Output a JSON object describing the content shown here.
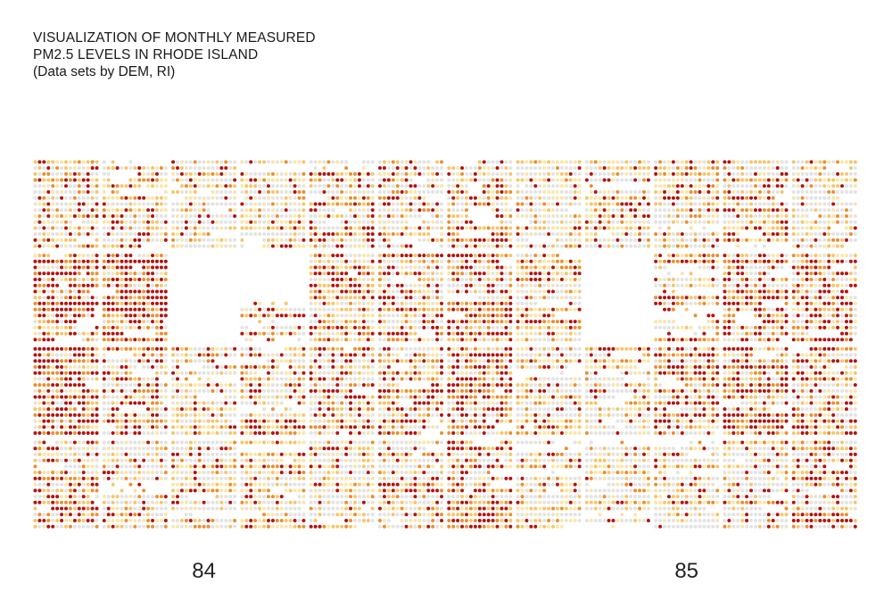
{
  "header": {
    "title_line1": "VISUALIZATION OF MONTHLY MEASURED",
    "title_line2": "PM2.5 LEVELS IN RHODE ISLAND",
    "subtitle": "(Data sets by DEM, RI)"
  },
  "chart_data": {
    "type": "heatmap",
    "title": "VISUALIZATION OF MONTHLY MEASURED PM2.5 LEVELS IN RHODE ISLAND",
    "subtitle": "(Data sets by DEM, RI)",
    "columns": [
      "84",
      "85"
    ],
    "labeled_column_indices": [
      2,
      9
    ],
    "grid": {
      "rows_of_panels": 4,
      "panels_per_row": 12,
      "dots_per_panel_row": 15,
      "dot_rows_per_panel": 15
    },
    "levels": [
      "no data",
      "low",
      "moderate",
      "elevated",
      "high",
      "very high"
    ],
    "colors": {
      "no data": "#ffffff",
      "low": "#e3e3e3",
      "moderate": "#fbe6a6",
      "elevated": "#f6c56a",
      "high": "#ea8f2e",
      "very high": "#b4120f"
    },
    "panels": [
      {
        "row": 0,
        "col": 0,
        "intensity": 0.35,
        "coverage": 0.95
      },
      {
        "row": 0,
        "col": 1,
        "intensity": 0.3,
        "coverage": 0.8
      },
      {
        "row": 0,
        "col": 2,
        "intensity": 0.1,
        "coverage": 0.95
      },
      {
        "row": 0,
        "col": 3,
        "intensity": 0.15,
        "coverage": 0.9
      },
      {
        "row": 0,
        "col": 4,
        "intensity": 0.35,
        "coverage": 0.9
      },
      {
        "row": 0,
        "col": 5,
        "intensity": 0.3,
        "coverage": 0.95
      },
      {
        "row": 0,
        "col": 6,
        "intensity": 0.45,
        "coverage": 0.95
      },
      {
        "row": 0,
        "col": 7,
        "intensity": 0.1,
        "coverage": 0.85
      },
      {
        "row": 0,
        "col": 8,
        "intensity": 0.2,
        "coverage": 0.85
      },
      {
        "row": 0,
        "col": 9,
        "intensity": 0.25,
        "coverage": 0.9
      },
      {
        "row": 0,
        "col": 10,
        "intensity": 0.35,
        "coverage": 0.85
      },
      {
        "row": 0,
        "col": 11,
        "intensity": 0.1,
        "coverage": 0.95
      },
      {
        "row": 1,
        "col": 0,
        "intensity": 0.85,
        "coverage": 1.0
      },
      {
        "row": 1,
        "col": 1,
        "intensity": 0.7,
        "coverage": 1.0
      },
      {
        "row": 1,
        "col": 2,
        "intensity": 0.0,
        "coverage": 0.0
      },
      {
        "row": 1,
        "col": 3,
        "intensity": 0.4,
        "coverage": 0.45,
        "top_empty": 0.55
      },
      {
        "row": 1,
        "col": 4,
        "intensity": 0.45,
        "coverage": 0.95
      },
      {
        "row": 1,
        "col": 5,
        "intensity": 0.55,
        "coverage": 0.95
      },
      {
        "row": 1,
        "col": 6,
        "intensity": 0.6,
        "coverage": 0.95
      },
      {
        "row": 1,
        "col": 7,
        "intensity": 0.3,
        "coverage": 0.9
      },
      {
        "row": 1,
        "col": 8,
        "intensity": 0.0,
        "coverage": 0.0
      },
      {
        "row": 1,
        "col": 9,
        "intensity": 0.5,
        "coverage": 0.3
      },
      {
        "row": 1,
        "col": 10,
        "intensity": 0.6,
        "coverage": 0.95
      },
      {
        "row": 1,
        "col": 11,
        "intensity": 0.7,
        "coverage": 1.0
      },
      {
        "row": 2,
        "col": 0,
        "intensity": 0.75,
        "coverage": 1.0
      },
      {
        "row": 2,
        "col": 1,
        "intensity": 0.55,
        "coverage": 0.95
      },
      {
        "row": 2,
        "col": 2,
        "intensity": 0.2,
        "coverage": 0.85
      },
      {
        "row": 2,
        "col": 3,
        "intensity": 0.4,
        "coverage": 0.9
      },
      {
        "row": 2,
        "col": 4,
        "intensity": 0.45,
        "coverage": 0.95
      },
      {
        "row": 2,
        "col": 5,
        "intensity": 0.5,
        "coverage": 0.95
      },
      {
        "row": 2,
        "col": 6,
        "intensity": 0.65,
        "coverage": 0.95
      },
      {
        "row": 2,
        "col": 7,
        "intensity": 0.2,
        "coverage": 0.9
      },
      {
        "row": 2,
        "col": 8,
        "intensity": 0.3,
        "coverage": 0.9
      },
      {
        "row": 2,
        "col": 9,
        "intensity": 0.45,
        "coverage": 0.95
      },
      {
        "row": 2,
        "col": 10,
        "intensity": 0.7,
        "coverage": 1.0
      },
      {
        "row": 2,
        "col": 11,
        "intensity": 0.45,
        "coverage": 0.95
      },
      {
        "row": 3,
        "col": 0,
        "intensity": 0.5,
        "coverage": 0.95
      },
      {
        "row": 3,
        "col": 1,
        "intensity": 0.2,
        "coverage": 0.85
      },
      {
        "row": 3,
        "col": 2,
        "intensity": 0.15,
        "coverage": 0.9
      },
      {
        "row": 3,
        "col": 3,
        "intensity": 0.2,
        "coverage": 0.9
      },
      {
        "row": 3,
        "col": 4,
        "intensity": 0.25,
        "coverage": 0.9
      },
      {
        "row": 3,
        "col": 5,
        "intensity": 0.35,
        "coverage": 0.9
      },
      {
        "row": 3,
        "col": 6,
        "intensity": 0.5,
        "coverage": 0.95
      },
      {
        "row": 3,
        "col": 7,
        "intensity": 0.2,
        "coverage": 0.85
      },
      {
        "row": 3,
        "col": 8,
        "intensity": 0.15,
        "coverage": 0.85
      },
      {
        "row": 3,
        "col": 9,
        "intensity": 0.2,
        "coverage": 0.9
      },
      {
        "row": 3,
        "col": 10,
        "intensity": 0.25,
        "coverage": 0.9
      },
      {
        "row": 3,
        "col": 11,
        "intensity": 0.5,
        "coverage": 0.95
      }
    ]
  }
}
